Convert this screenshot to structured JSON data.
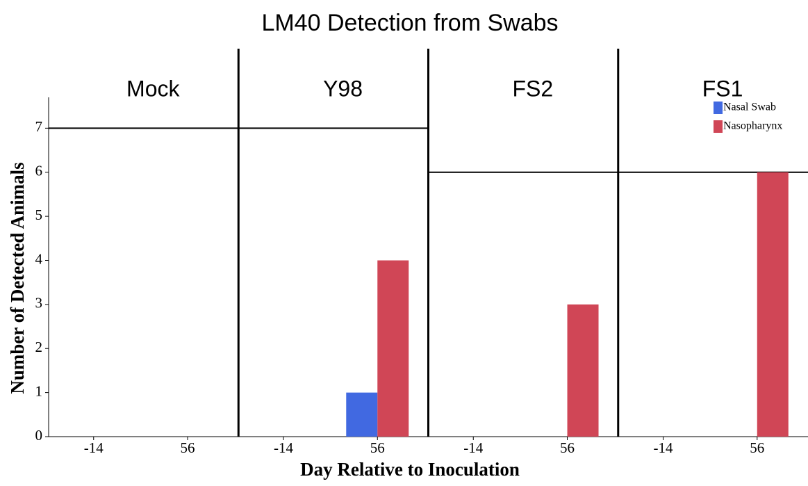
{
  "chart_data": {
    "type": "bar",
    "title": "LM40 Detection from Swabs",
    "panels": [
      "Mock",
      "Y98",
      "FS2",
      "FS1"
    ],
    "group_sizes": [
      7,
      7,
      6,
      6
    ],
    "categories": [
      "-14",
      "56",
      "-14",
      "56",
      "-14",
      "56",
      "-14",
      "56"
    ],
    "series": [
      {
        "name": "Nasal Swab",
        "color": "#4169e1",
        "values": [
          0,
          0,
          0,
          1,
          0,
          0,
          0,
          0
        ]
      },
      {
        "name": "Nasopharynx",
        "color": "#d04656",
        "values": [
          0,
          0,
          0,
          4,
          0,
          3,
          0,
          6
        ]
      }
    ],
    "ylim": [
      0,
      7.7
    ],
    "yticks": [
      0,
      1,
      2,
      3,
      4,
      5,
      6,
      7
    ],
    "xlabel": "Day Relative to Inoculation",
    "ylabel": "Number of Detected Animals",
    "legend": "top-right"
  }
}
